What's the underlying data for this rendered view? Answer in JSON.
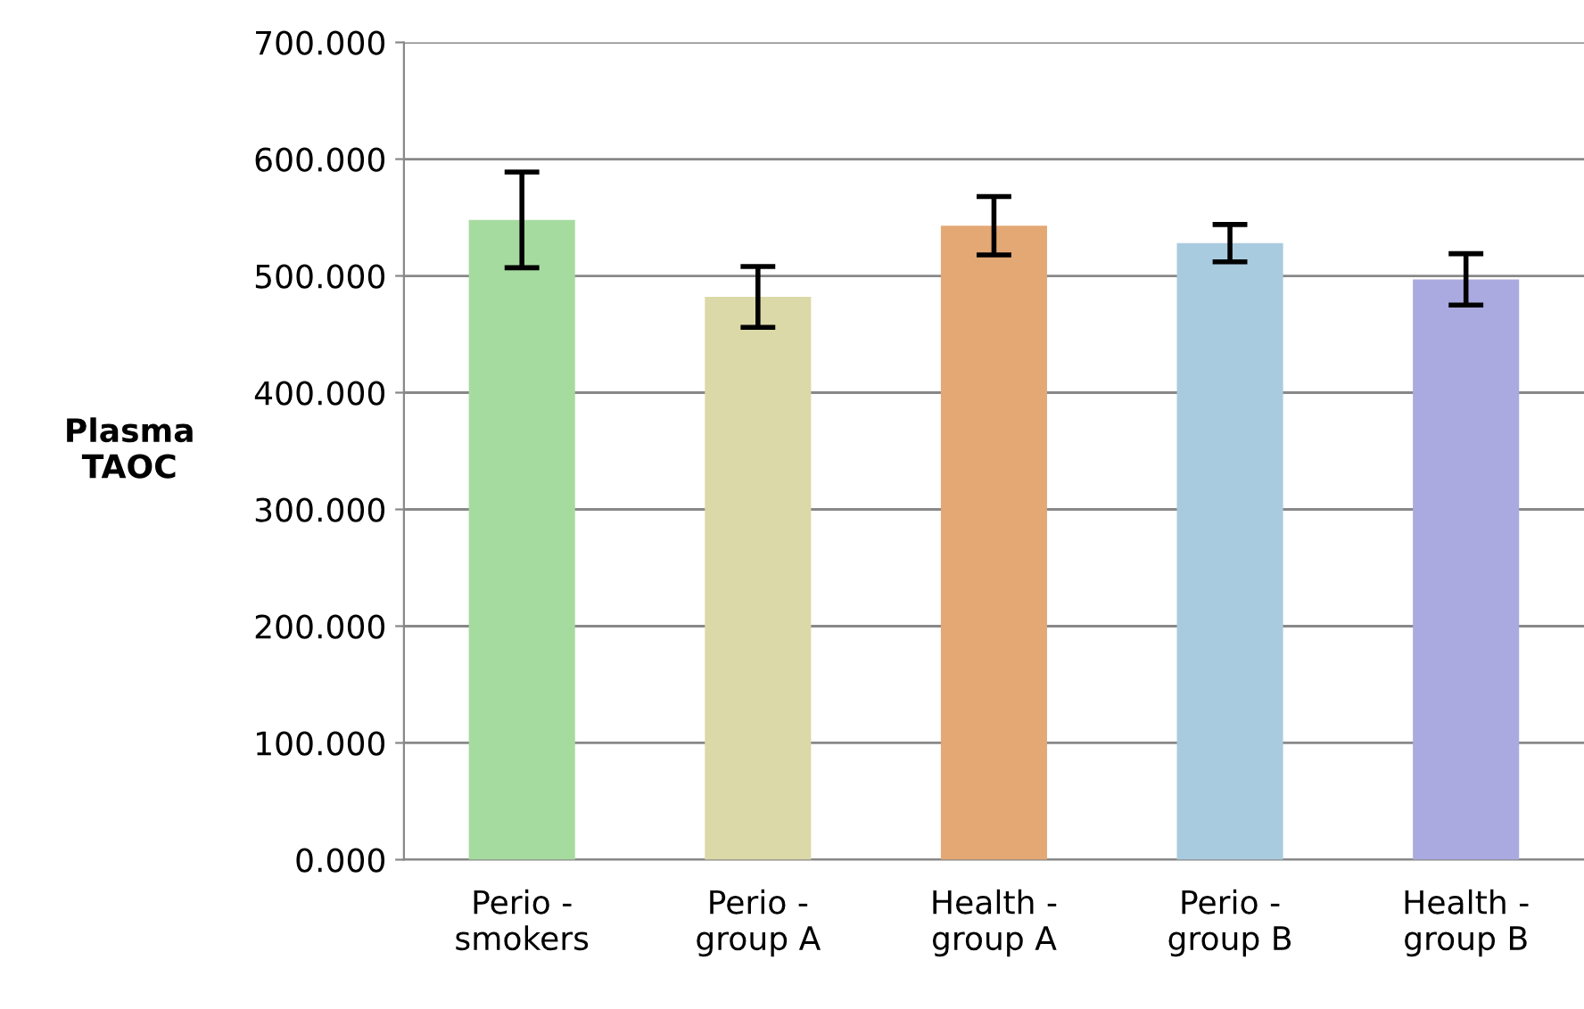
{
  "chart_data": {
    "type": "bar",
    "ylabel": "Plasma\nTAOC",
    "categories": [
      "Perio -\nsmokers",
      "Perio -\ngroup A",
      "Health -\ngroup A",
      "Perio -\ngroup B",
      "Health -\ngroup B"
    ],
    "values": [
      548,
      482,
      543,
      528,
      497
    ],
    "errors": [
      41,
      26,
      25,
      16,
      22
    ],
    "colors": [
      "#a6dba0",
      "#dcd9a8",
      "#e3a874",
      "#a9cbdf",
      "#aaaae0"
    ],
    "ylim": [
      0,
      700
    ],
    "yticks": [
      {
        "value": 0,
        "label": "0.000"
      },
      {
        "value": 100,
        "label": "100.000"
      },
      {
        "value": 200,
        "label": "200.000"
      },
      {
        "value": 300,
        "label": "300.000"
      },
      {
        "value": 400,
        "label": "400.000"
      },
      {
        "value": 500,
        "label": "500.000"
      },
      {
        "value": 600,
        "label": "600.000"
      },
      {
        "value": 700,
        "label": "700.000"
      }
    ],
    "grid": "y"
  }
}
